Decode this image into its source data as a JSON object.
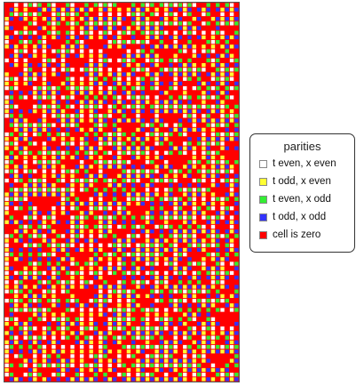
{
  "chart_data": {
    "type": "heatmap",
    "title": "",
    "xlabel": "",
    "ylabel": "",
    "grid": false,
    "rows": 82,
    "cols": 50,
    "rule": "mod-3 cellular automaton; cell color encodes parity of t and x, zero cells red",
    "legend": {
      "title": "parities",
      "placement": "right",
      "entries": [
        {
          "label": "t even, x even",
          "color": "#ffffff"
        },
        {
          "label": "t odd, x even",
          "color": "#ffff33"
        },
        {
          "label": "t even, x odd",
          "color": "#33ee33"
        },
        {
          "label": "t odd, x odd",
          "color": "#3333ff"
        },
        {
          "label": "cell is zero",
          "color": "#ff0000"
        }
      ]
    }
  }
}
